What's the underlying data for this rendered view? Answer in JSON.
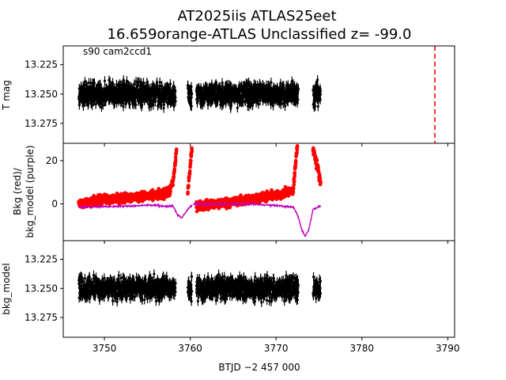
{
  "figure": {
    "title_line1": "AT2025iis  ATLAS25eet",
    "title_line2": "16.659orange-ATLAS Unclassified z= -99.0",
    "annotation": "s90 cam2ccd1",
    "xlabel": "BTJD −2 457 000"
  },
  "colors": {
    "flux": "#000000",
    "bkg": "#ff0000",
    "bkg_model": "#bf00bf",
    "marker_line": "#ff0000"
  },
  "chart_data": [
    {
      "type": "scatter",
      "panel": "top",
      "ylabel": "T mag",
      "xlim": [
        3745.2,
        3790.8
      ],
      "ylim": [
        13.292,
        13.209
      ],
      "y_inverted": true,
      "yticks": [
        13.225,
        13.25,
        13.275
      ],
      "ytick_labels": [
        "13.225",
        "13.250",
        "13.275"
      ],
      "segments": [
        [
          3747.0,
          3758.3
        ],
        [
          3759.7,
          3760.2
        ],
        [
          3760.7,
          3772.6
        ],
        [
          3774.3,
          3775.2
        ]
      ],
      "series": [
        {
          "center": 13.25,
          "spread": 0.031,
          "error": 0.004
        }
      ],
      "vertical_marker": {
        "x": 3788.5,
        "style": "dashed"
      }
    },
    {
      "type": "scatter",
      "panel": "middle",
      "ylabel": "Bkg (red)/\nbkg_model (purple)",
      "xlim": [
        3745.2,
        3790.8
      ],
      "ylim": [
        -17,
        28
      ],
      "yticks": [
        0,
        20
      ],
      "ytick_labels": [
        "0",
        "20"
      ],
      "series": [
        {
          "name": "Bkg",
          "color": "red"
        },
        {
          "name": "bkg_model",
          "color": "purple"
        }
      ],
      "bkg_model_trend": [
        [
          3747.0,
          -1.5
        ],
        [
          3753.0,
          -1.0
        ],
        [
          3756.0,
          -0.5
        ],
        [
          3757.0,
          -1.2
        ],
        [
          3758.0,
          -1.0
        ],
        [
          3758.5,
          -5.0
        ],
        [
          3759.0,
          -6.5
        ],
        [
          3759.8,
          -2.0
        ],
        [
          3760.4,
          0.0
        ],
        [
          3763.0,
          -0.2
        ],
        [
          3767.0,
          0.0
        ],
        [
          3770.0,
          -0.8
        ],
        [
          3772.0,
          -1.5
        ],
        [
          3772.5,
          -5.0
        ],
        [
          3773.0,
          -12.0
        ],
        [
          3773.4,
          -15.0
        ],
        [
          3773.8,
          -12.0
        ],
        [
          3774.3,
          -2.5
        ],
        [
          3775.2,
          -1.0
        ]
      ],
      "bkg_trend": [
        [
          3747.0,
          0.0
        ],
        [
          3750.0,
          2.0
        ],
        [
          3753.0,
          3.0
        ],
        [
          3756.0,
          4.0
        ],
        [
          3757.5,
          5.0
        ],
        [
          3758.0,
          10.0
        ],
        [
          3758.4,
          25.0
        ],
        [
          3759.7,
          5.0
        ],
        [
          3760.2,
          26.0
        ],
        [
          3760.7,
          -1.0
        ],
        [
          3763.0,
          0.0
        ],
        [
          3767.0,
          2.0
        ],
        [
          3770.0,
          4.0
        ],
        [
          3772.0,
          6.0
        ],
        [
          3772.4,
          25.0
        ],
        [
          3774.3,
          26.0
        ],
        [
          3775.2,
          10.0
        ]
      ]
    },
    {
      "type": "scatter",
      "panel": "bottom",
      "ylabel": "bkg_model",
      "xlim": [
        3745.2,
        3790.8
      ],
      "ylim": [
        13.292,
        13.209
      ],
      "y_inverted": true,
      "yticks": [
        13.225,
        13.25,
        13.275
      ],
      "ytick_labels": [
        "13.225",
        "13.250",
        "13.275"
      ],
      "xticks": [
        3750,
        3760,
        3770,
        3780,
        3790
      ],
      "xtick_labels": [
        "3750",
        "3760",
        "3770",
        "3780",
        "3790"
      ],
      "segments": [
        [
          3747.0,
          3758.3
        ],
        [
          3759.7,
          3760.2
        ],
        [
          3760.7,
          3772.6
        ],
        [
          3774.3,
          3775.2
        ]
      ],
      "series": [
        {
          "center": 13.25,
          "spread": 0.031,
          "error": 0.004
        }
      ]
    }
  ]
}
